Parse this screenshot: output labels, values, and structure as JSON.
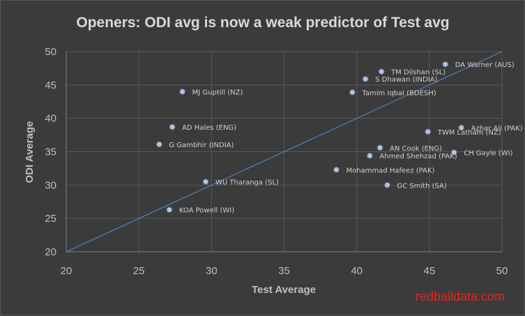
{
  "chart_data": {
    "type": "scatter",
    "title": "Openers: ODI avg is now a weak predictor of Test avg",
    "xlabel": "Test Average",
    "ylabel": "ODI Average",
    "xlim": [
      20,
      50
    ],
    "ylim": [
      20,
      50
    ],
    "xticks": [
      "20",
      "25",
      "30",
      "35",
      "40",
      "45",
      "50"
    ],
    "yticks": [
      "20",
      "25",
      "30",
      "35",
      "40",
      "45",
      "50"
    ],
    "grid": true,
    "legend": "none",
    "trendline": {
      "x": [
        20,
        50
      ],
      "y": [
        20,
        50
      ]
    },
    "point_color": "#a9c4ec",
    "line_color": "#4f81bd",
    "points": [
      {
        "label": "DA Warner (AUS)",
        "x": 46.1,
        "y": 48.1
      },
      {
        "label": "TM Dilshan (SL)",
        "x": 41.7,
        "y": 47.0
      },
      {
        "label": "S Dhawan (INDIA)",
        "x": 40.6,
        "y": 45.9
      },
      {
        "label": "Tamim Iqbal (BDESH)",
        "x": 39.7,
        "y": 43.9
      },
      {
        "label": "MJ Guptill (NZ)",
        "x": 28.0,
        "y": 44.0
      },
      {
        "label": "AD Hales (ENG)",
        "x": 27.3,
        "y": 38.7
      },
      {
        "label": "G Gambhir (INDIA)",
        "x": 26.4,
        "y": 36.1
      },
      {
        "label": "Azhar Ali (PAK)",
        "x": 47.2,
        "y": 38.6
      },
      {
        "label": "TWM Latham (NZ)",
        "x": 44.9,
        "y": 38.0
      },
      {
        "label": "AN Cook (ENG)",
        "x": 41.6,
        "y": 35.6
      },
      {
        "label": "CH Gayle (WI)",
        "x": 46.7,
        "y": 34.9
      },
      {
        "label": "Ahmed Shehzad (PAK)",
        "x": 40.9,
        "y": 34.4
      },
      {
        "label": "Mohammad Hafeez (PAK)",
        "x": 38.6,
        "y": 32.3
      },
      {
        "label": "WU Tharanga (SL)",
        "x": 29.6,
        "y": 30.5
      },
      {
        "label": "GC Smith (SA)",
        "x": 42.1,
        "y": 30.0
      },
      {
        "label": "KOA Powell (WI)",
        "x": 27.1,
        "y": 26.3
      }
    ]
  },
  "watermark": "redballdata.com"
}
